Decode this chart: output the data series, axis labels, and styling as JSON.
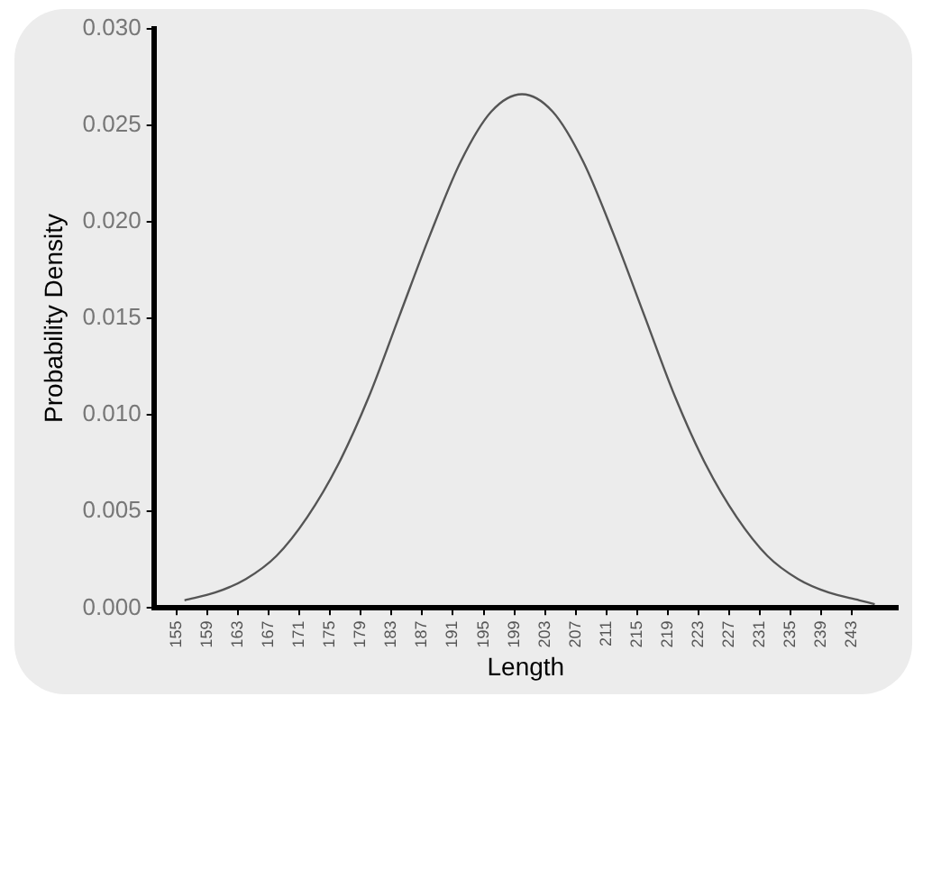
{
  "chart_data": {
    "type": "line",
    "xlabel": "Length",
    "ylabel": "Probability Density",
    "x": [
      156,
      160,
      164,
      168,
      172,
      176,
      180,
      184,
      188,
      192,
      196,
      200,
      204,
      208,
      212,
      216,
      220,
      224,
      228,
      232,
      236,
      240,
      244,
      246
    ],
    "series": [
      {
        "color": "#555555",
        "values": [
          0.0004,
          0.0008,
          0.0015,
          0.0027,
          0.0047,
          0.0074,
          0.0109,
          0.0151,
          0.0193,
          0.0231,
          0.0257,
          0.0266,
          0.0257,
          0.0231,
          0.0193,
          0.0151,
          0.0109,
          0.0074,
          0.0047,
          0.0027,
          0.0015,
          0.0008,
          0.0004,
          0.0002
        ]
      }
    ],
    "xlim": [
      152,
      249
    ],
    "xticks": [
      155,
      159,
      163,
      167,
      171,
      175,
      179,
      183,
      187,
      191,
      195,
      199,
      203,
      207,
      211,
      215,
      219,
      223,
      227,
      231,
      235,
      239,
      243
    ],
    "ylim": [
      0,
      0.03
    ],
    "yticks": [
      {
        "value": 0,
        "label": "0.000"
      },
      {
        "value": 0.005,
        "label": "0.005"
      },
      {
        "value": 0.01,
        "label": "0.010"
      },
      {
        "value": 0.015,
        "label": "0.015"
      },
      {
        "value": 0.02,
        "label": "0.020"
      },
      {
        "value": 0.025,
        "label": "0.025"
      },
      {
        "value": 0.03,
        "label": "0.030"
      }
    ],
    "grid": false,
    "legend": false,
    "marker": "none",
    "line_style": "solid"
  }
}
